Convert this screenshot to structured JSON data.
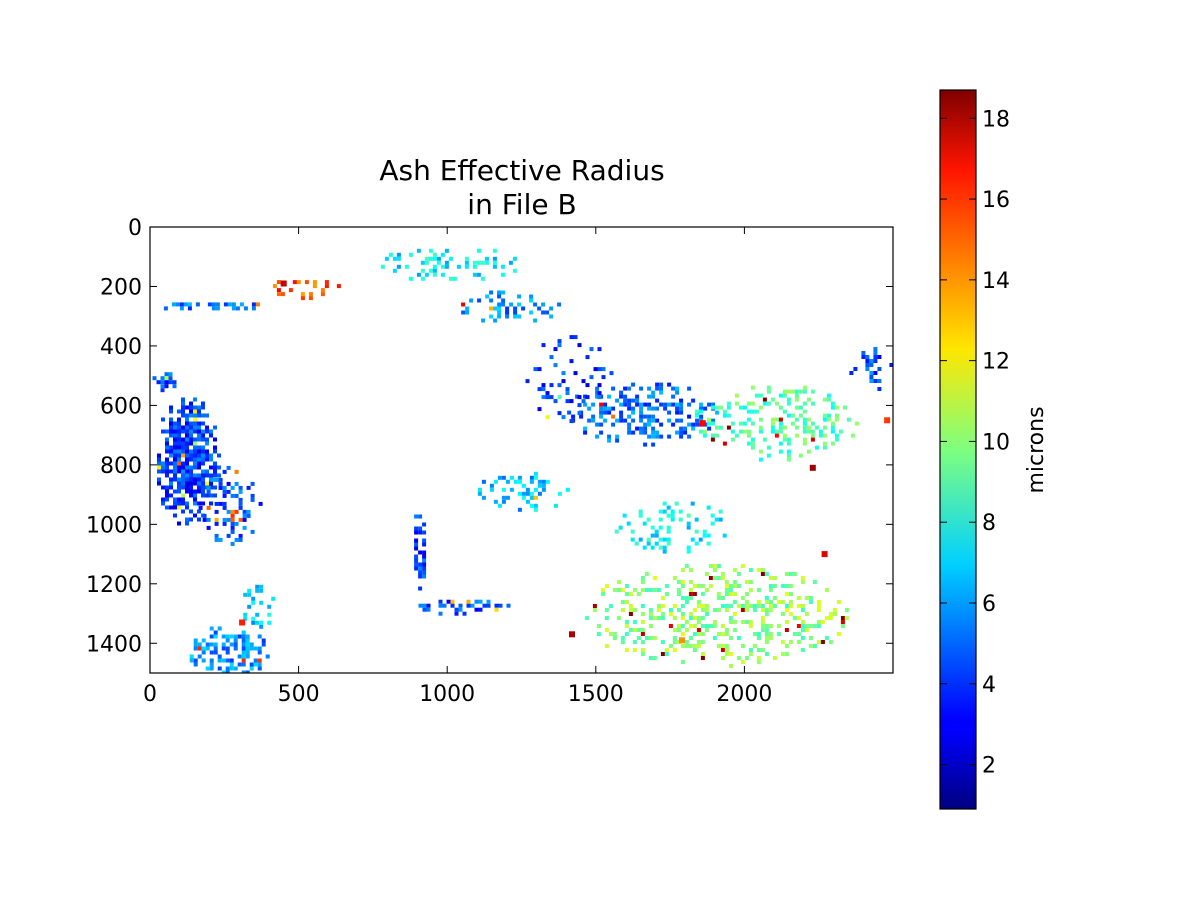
{
  "chart_data": {
    "type": "heatmap",
    "title_lines": [
      "Ash Effective Radius",
      "in File B"
    ],
    "xlabel": "",
    "ylabel": "",
    "x_range": [
      0,
      2500
    ],
    "y_range": [
      0,
      1500
    ],
    "y_inverted": true,
    "x_ticks": [
      "0",
      "500",
      "1000",
      "1500",
      "2000"
    ],
    "x_tick_values": [
      0,
      500,
      1000,
      1500,
      2000
    ],
    "y_ticks": [
      "0",
      "200",
      "400",
      "600",
      "800",
      "1000",
      "1200",
      "1400"
    ],
    "y_tick_values": [
      0,
      200,
      400,
      600,
      800,
      1000,
      1200,
      1400
    ],
    "grid": false,
    "colorbar": {
      "label": "microns",
      "range": [
        0.9,
        18.7
      ],
      "ticks": [
        "2",
        "4",
        "6",
        "8",
        "10",
        "12",
        "14",
        "16",
        "18"
      ],
      "tick_values": [
        2,
        4,
        6,
        8,
        10,
        12,
        14,
        16,
        18
      ],
      "colormap": "jet"
    },
    "regions": [
      {
        "name": "west-plume",
        "x": 120,
        "y": 780,
        "rx": 110,
        "ry": 220,
        "value": 4.2,
        "density": 0.95
      },
      {
        "name": "west-speckle",
        "x": 260,
        "y": 930,
        "rx": 110,
        "ry": 140,
        "value": 4.6,
        "density": 0.35
      },
      {
        "name": "sw-patch",
        "x": 260,
        "y": 1420,
        "rx": 140,
        "ry": 90,
        "value": 5.5,
        "density": 0.55
      },
      {
        "name": "sw-cluster",
        "x": 360,
        "y": 1270,
        "rx": 60,
        "ry": 80,
        "value": 7.0,
        "density": 0.5
      },
      {
        "name": "nw-streak-a",
        "x": 220,
        "y": 260,
        "rx": 200,
        "ry": 20,
        "value": 5.0,
        "density": 0.55
      },
      {
        "name": "nw-streak-b",
        "x": 520,
        "y": 200,
        "rx": 120,
        "ry": 35,
        "value": 15.0,
        "density": 0.35
      },
      {
        "name": "west-edge",
        "x": 40,
        "y": 510,
        "rx": 45,
        "ry": 35,
        "value": 4.5,
        "density": 0.9
      },
      {
        "name": "north-band",
        "x": 1000,
        "y": 120,
        "rx": 250,
        "ry": 60,
        "value": 7.2,
        "density": 0.35
      },
      {
        "name": "north-mid",
        "x": 1200,
        "y": 260,
        "rx": 180,
        "ry": 60,
        "value": 5.5,
        "density": 0.4
      },
      {
        "name": "center-dense",
        "x": 1650,
        "y": 620,
        "rx": 260,
        "ry": 110,
        "value": 5.0,
        "density": 0.45
      },
      {
        "name": "center-east",
        "x": 2100,
        "y": 650,
        "rx": 280,
        "ry": 130,
        "value": 9.0,
        "density": 0.35
      },
      {
        "name": "center-south",
        "x": 1250,
        "y": 880,
        "rx": 160,
        "ry": 70,
        "value": 6.5,
        "density": 0.35
      },
      {
        "name": "mid-streak",
        "x": 900,
        "y": 1080,
        "rx": 25,
        "ry": 140,
        "value": 4.0,
        "density": 0.7
      },
      {
        "name": "south-band",
        "x": 1050,
        "y": 1270,
        "rx": 160,
        "ry": 30,
        "value": 4.5,
        "density": 0.55
      },
      {
        "name": "se-field",
        "x": 1900,
        "y": 1300,
        "rx": 450,
        "ry": 180,
        "value": 10.0,
        "density": 0.35
      },
      {
        "name": "ne-edge",
        "x": 2420,
        "y": 470,
        "rx": 80,
        "ry": 80,
        "value": 4.5,
        "density": 0.45
      },
      {
        "name": "e-mid",
        "x": 1750,
        "y": 1000,
        "rx": 200,
        "ry": 90,
        "value": 7.5,
        "density": 0.3
      },
      {
        "name": "central-scatter",
        "x": 1400,
        "y": 500,
        "rx": 150,
        "ry": 150,
        "value": 4.0,
        "density": 0.2
      }
    ],
    "hotspots": [
      {
        "x": 450,
        "y": 190,
        "value": 17.5
      },
      {
        "x": 1420,
        "y": 1370,
        "value": 18.0
      },
      {
        "x": 2270,
        "y": 1100,
        "value": 17.0
      },
      {
        "x": 2230,
        "y": 810,
        "value": 18.2
      },
      {
        "x": 1860,
        "y": 660,
        "value": 16.5
      },
      {
        "x": 2480,
        "y": 650,
        "value": 15.5
      },
      {
        "x": 1790,
        "y": 1390,
        "value": 14.0
      },
      {
        "x": 310,
        "y": 1330,
        "value": 16.0
      }
    ]
  }
}
